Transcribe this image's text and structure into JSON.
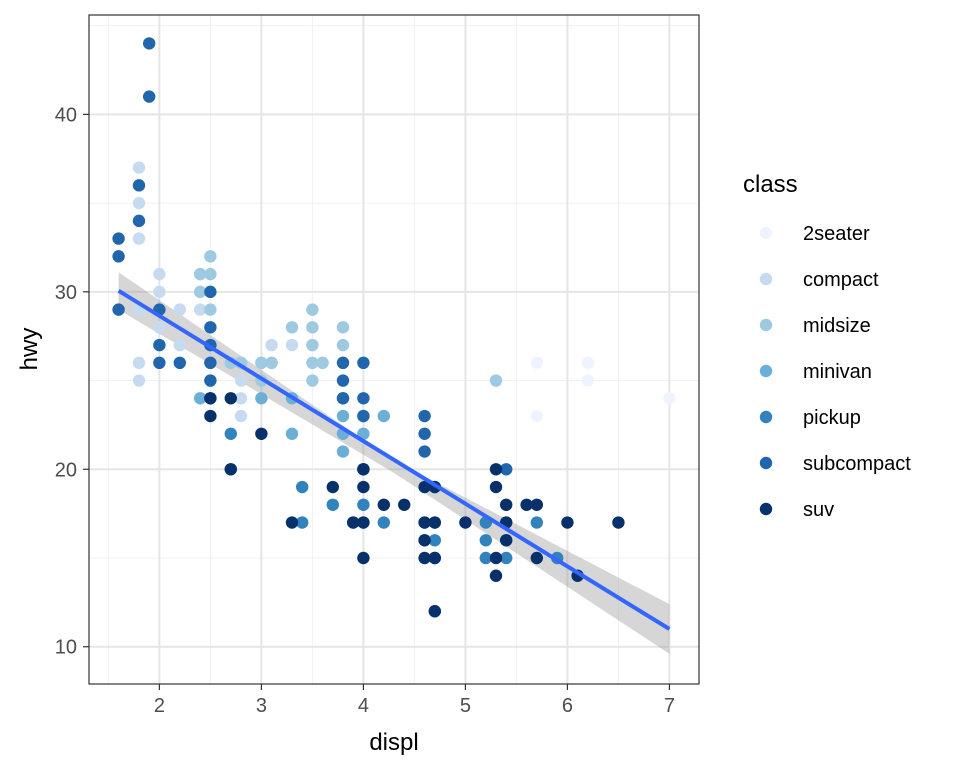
{
  "chart_data": {
    "type": "scatter",
    "xlabel": "displ",
    "ylabel": "hwy",
    "xlim": [
      1.31,
      7.29
    ],
    "ylim": [
      7.9,
      45.6
    ],
    "x_ticks": [
      2,
      3,
      4,
      5,
      6,
      7
    ],
    "y_ticks": [
      10,
      20,
      30,
      40
    ],
    "grid": true,
    "legend": {
      "title": "class",
      "position": "right",
      "entries": [
        "2seater",
        "compact",
        "midsize",
        "minivan",
        "pickup",
        "subcompact",
        "suv"
      ]
    },
    "colors": {
      "2seater": "#eff3ff",
      "compact": "#c6dbef",
      "midsize": "#9ecae1",
      "minivan": "#6baed6",
      "pickup": "#3182bd",
      "subcompact": "#2166ac",
      "suv": "#08306b",
      "smooth_line": "#3366ff",
      "confidence_band": "#999999"
    },
    "smooth": {
      "method": "linear",
      "line": [
        [
          1.6,
          30.06
        ],
        [
          7.0,
          11.0
        ]
      ],
      "band": {
        "x": [
          1.6,
          4.3,
          7.0
        ],
        "lower": [
          29.0,
          19.8,
          9.6
        ],
        "upper": [
          31.1,
          20.5,
          12.4
        ]
      }
    },
    "series": [
      {
        "name": "2seater",
        "points": [
          [
            5.7,
            26
          ],
          [
            5.7,
            23
          ],
          [
            6.2,
            26
          ],
          [
            6.2,
            25
          ],
          [
            7.0,
            24
          ]
        ]
      },
      {
        "name": "compact",
        "points": [
          [
            1.8,
            37
          ],
          [
            1.8,
            35
          ],
          [
            1.8,
            33
          ],
          [
            1.8,
            29
          ],
          [
            1.8,
            26
          ],
          [
            1.8,
            25
          ],
          [
            2.0,
            31
          ],
          [
            2.0,
            30
          ],
          [
            2.0,
            29
          ],
          [
            2.0,
            28
          ],
          [
            2.2,
            29
          ],
          [
            2.2,
            27
          ],
          [
            2.4,
            31
          ],
          [
            2.4,
            29
          ],
          [
            2.5,
            27
          ],
          [
            2.5,
            26
          ],
          [
            2.5,
            25
          ],
          [
            2.8,
            25
          ],
          [
            2.8,
            24
          ],
          [
            2.8,
            23
          ],
          [
            3.0,
            26
          ],
          [
            3.1,
            27
          ],
          [
            3.1,
            26
          ],
          [
            3.3,
            27
          ],
          [
            1.8,
            29
          ],
          [
            2.0,
            28
          ]
        ]
      },
      {
        "name": "midsize",
        "points": [
          [
            2.4,
            31
          ],
          [
            2.4,
            30
          ],
          [
            2.5,
            32
          ],
          [
            2.5,
            31
          ],
          [
            2.5,
            29
          ],
          [
            2.5,
            26
          ],
          [
            2.7,
            26
          ],
          [
            2.8,
            26
          ],
          [
            3.0,
            26
          ],
          [
            3.1,
            26
          ],
          [
            3.3,
            28
          ],
          [
            3.5,
            29
          ],
          [
            3.5,
            28
          ],
          [
            3.5,
            27
          ],
          [
            3.5,
            26
          ],
          [
            3.5,
            25
          ],
          [
            3.6,
            26
          ],
          [
            3.8,
            28
          ],
          [
            3.8,
            27
          ],
          [
            3.8,
            26
          ],
          [
            3.8,
            24
          ],
          [
            5.3,
            25
          ],
          [
            3.0,
            25
          ]
        ]
      },
      {
        "name": "minivan",
        "points": [
          [
            2.4,
            24
          ],
          [
            3.0,
            24
          ],
          [
            3.3,
            24
          ],
          [
            3.3,
            22
          ],
          [
            3.8,
            24
          ],
          [
            3.8,
            23
          ],
          [
            3.8,
            22
          ],
          [
            3.8,
            21
          ],
          [
            4.0,
            23
          ],
          [
            4.0,
            22
          ],
          [
            4.2,
            23
          ]
        ]
      },
      {
        "name": "pickup",
        "points": [
          [
            2.7,
            22
          ],
          [
            2.7,
            20
          ],
          [
            3.4,
            19
          ],
          [
            3.4,
            17
          ],
          [
            3.7,
            18
          ],
          [
            3.9,
            17
          ],
          [
            4.0,
            18
          ],
          [
            4.0,
            17
          ],
          [
            4.2,
            17
          ],
          [
            4.6,
            17
          ],
          [
            4.6,
            16
          ],
          [
            4.7,
            16
          ],
          [
            4.7,
            17
          ],
          [
            4.7,
            12
          ],
          [
            5.2,
            17
          ],
          [
            5.2,
            16
          ],
          [
            5.2,
            15
          ],
          [
            5.4,
            17
          ],
          [
            5.4,
            16
          ],
          [
            5.4,
            15
          ],
          [
            5.7,
            17
          ],
          [
            5.9,
            15
          ],
          [
            4.7,
            19
          ],
          [
            4.0,
            20
          ],
          [
            4.7,
            15
          ]
        ]
      },
      {
        "name": "subcompact",
        "points": [
          [
            1.6,
            33
          ],
          [
            1.6,
            32
          ],
          [
            1.6,
            29
          ],
          [
            1.8,
            36
          ],
          [
            1.8,
            34
          ],
          [
            1.9,
            44
          ],
          [
            1.9,
            41
          ],
          [
            2.0,
            29
          ],
          [
            2.0,
            27
          ],
          [
            2.0,
            26
          ],
          [
            2.2,
            26
          ],
          [
            2.5,
            30
          ],
          [
            2.5,
            28
          ],
          [
            2.5,
            27
          ],
          [
            2.5,
            26
          ],
          [
            2.5,
            25
          ],
          [
            2.5,
            24
          ],
          [
            3.8,
            26
          ],
          [
            3.8,
            25
          ],
          [
            3.8,
            24
          ],
          [
            4.0,
            26
          ],
          [
            4.0,
            24
          ],
          [
            4.0,
            23
          ],
          [
            4.0,
            20
          ],
          [
            4.6,
            23
          ],
          [
            4.6,
            22
          ],
          [
            4.6,
            21
          ],
          [
            5.4,
            20
          ]
        ]
      },
      {
        "name": "suv",
        "points": [
          [
            2.5,
            23
          ],
          [
            2.5,
            24
          ],
          [
            2.7,
            24
          ],
          [
            3.0,
            22
          ],
          [
            3.3,
            17
          ],
          [
            3.7,
            19
          ],
          [
            3.9,
            17
          ],
          [
            4.0,
            20
          ],
          [
            4.0,
            19
          ],
          [
            4.0,
            17
          ],
          [
            4.0,
            15
          ],
          [
            4.2,
            18
          ],
          [
            4.4,
            18
          ],
          [
            4.6,
            19
          ],
          [
            4.6,
            17
          ],
          [
            4.6,
            15
          ],
          [
            4.7,
            17
          ],
          [
            4.7,
            15
          ],
          [
            4.7,
            12
          ],
          [
            5.0,
            17
          ],
          [
            5.3,
            20
          ],
          [
            5.3,
            19
          ],
          [
            5.3,
            15
          ],
          [
            5.3,
            14
          ],
          [
            5.4,
            18
          ],
          [
            5.4,
            17
          ],
          [
            5.4,
            16
          ],
          [
            5.6,
            18
          ],
          [
            5.7,
            18
          ],
          [
            5.7,
            15
          ],
          [
            6.0,
            17
          ],
          [
            6.1,
            14
          ],
          [
            6.5,
            17
          ],
          [
            2.7,
            20
          ],
          [
            4.7,
            19
          ],
          [
            4.6,
            16
          ]
        ]
      }
    ]
  }
}
